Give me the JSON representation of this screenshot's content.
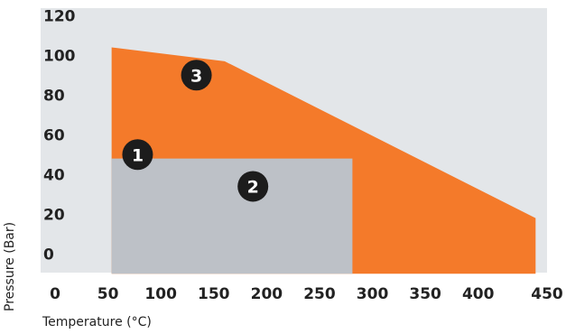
{
  "chart_data": {
    "type": "area",
    "xlabel": "Temperature (°C)",
    "ylabel": "Pressure (Bar)",
    "x_ticks": [
      0,
      50,
      100,
      150,
      200,
      250,
      300,
      350,
      400,
      450
    ],
    "y_ticks": [
      0,
      20,
      40,
      60,
      80,
      100,
      120
    ],
    "xlim": [
      0,
      450
    ],
    "ylim": [
      -10,
      125
    ],
    "grid": false,
    "regions": [
      {
        "id": "3",
        "color": "#f47a2a",
        "points": [
          [
            50,
            104
          ],
          [
            150,
            97
          ],
          [
            425,
            18
          ],
          [
            425,
            -10
          ],
          [
            50,
            -10
          ]
        ]
      },
      {
        "id": "2",
        "color": "#bdc1c7",
        "points": [
          [
            50,
            48
          ],
          [
            263,
            48
          ],
          [
            263,
            -10
          ],
          [
            50,
            -10
          ]
        ]
      }
    ],
    "markers": [
      {
        "label": "1",
        "x": 73,
        "y": 50
      },
      {
        "label": "2",
        "x": 175,
        "y": 34
      },
      {
        "label": "3",
        "x": 125,
        "y": 90
      }
    ],
    "colors": {
      "plot_background": "#e3e6e9",
      "marker_fill": "#1c1c1c"
    }
  }
}
